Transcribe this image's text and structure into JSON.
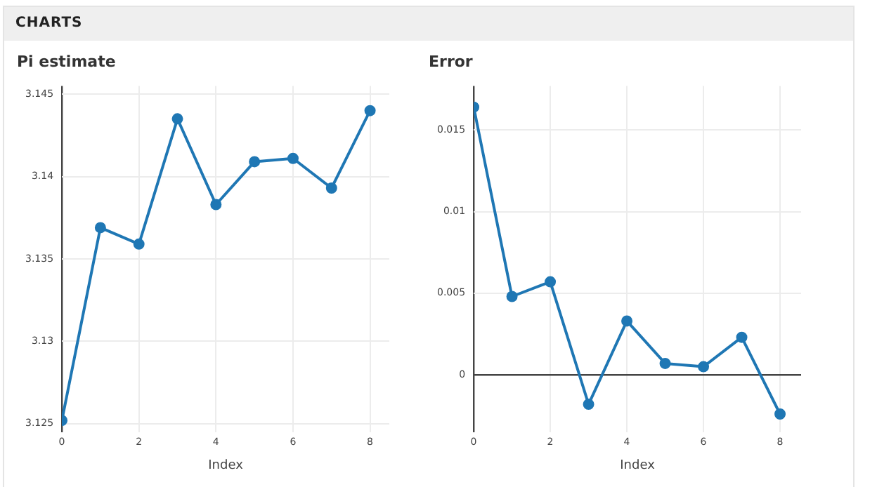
{
  "chart_data": [
    {
      "type": "line",
      "title": "Pi estimate",
      "xlabel": "Index",
      "annotations": [
        "CHARTS"
      ],
      "x": [
        0,
        1,
        2,
        3,
        4,
        5,
        6,
        7,
        8
      ],
      "series": [
        {
          "color": "#1f77b4",
          "values": [
            3.1252,
            3.1369,
            3.1359,
            3.1435,
            3.1383,
            3.1409,
            3.1411,
            3.1393,
            3.144
          ]
        }
      ],
      "xlim": [
        0,
        8.5
      ],
      "xticks": [
        0,
        2,
        4,
        6,
        8
      ],
      "ylim": [
        3.1245,
        3.1455
      ],
      "yticks": [
        3.125,
        3.13,
        3.135,
        3.14,
        3.145
      ],
      "grid": true,
      "legend": false,
      "marker": "circle",
      "line_style": "solid"
    },
    {
      "type": "line",
      "title": "Error",
      "xlabel": "Index",
      "x": [
        0,
        1,
        2,
        3,
        4,
        5,
        6,
        7,
        8
      ],
      "series": [
        {
          "color": "#1f77b4",
          "values": [
            0.0164,
            0.0048,
            0.0057,
            -0.0018,
            0.0033,
            0.0007,
            0.0005,
            0.0023,
            -0.0024
          ]
        }
      ],
      "xlim": [
        0,
        8.55
      ],
      "xticks": [
        0,
        2,
        4,
        6,
        8
      ],
      "ylim": [
        -0.0035,
        0.0177
      ],
      "yticks": [
        0,
        0.005,
        0.01,
        0.015
      ],
      "grid": true,
      "legend": false,
      "marker": "circle",
      "line_style": "solid"
    }
  ]
}
